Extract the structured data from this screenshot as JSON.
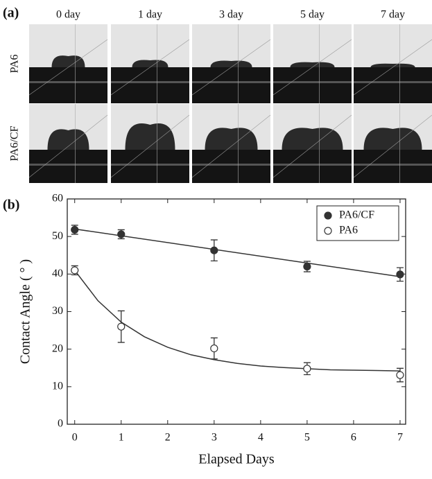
{
  "panel_a": {
    "label": "(a)",
    "columns": [
      "0 day",
      "1 day",
      "3 day",
      "5 day",
      "7 day"
    ],
    "rows": [
      "PA6",
      "PA6/CF"
    ]
  },
  "chart_data": {
    "type": "scatter",
    "label": "(b)",
    "x_label": "Elapsed Days",
    "y_label": "Contact Angle ( ° )",
    "xlim": [
      -0.16,
      7.12
    ],
    "ylim": [
      0,
      60
    ],
    "xticks": [
      0,
      1,
      2,
      3,
      4,
      5,
      6,
      7
    ],
    "yticks": [
      0,
      10,
      20,
      30,
      40,
      50,
      60
    ],
    "legend": "top-right",
    "series": [
      {
        "name": "PA6/CF",
        "color": "#333333",
        "filled": true,
        "x": [
          0,
          1,
          3,
          5,
          7
        ],
        "values": [
          51.8,
          50.6,
          46.3,
          42.0,
          39.9
        ],
        "errors": [
          1.2,
          1.2,
          2.8,
          1.4,
          1.8
        ],
        "fit": {
          "x": [
            0,
            7
          ],
          "values": [
            52,
            39.3
          ]
        }
      },
      {
        "name": "PA6",
        "color": "#333333",
        "filled": false,
        "x": [
          0,
          1,
          3,
          5,
          7
        ],
        "values": [
          41.0,
          26.0,
          20.2,
          14.8,
          13.1
        ],
        "errors": [
          1.2,
          4.2,
          2.8,
          1.6,
          1.8
        ],
        "fit": {
          "x": [
            0,
            0.5,
            1,
            1.5,
            2,
            2.5,
            3,
            3.5,
            4,
            4.5,
            5,
            5.5,
            6,
            6.5,
            7
          ],
          "values": [
            41,
            32.9,
            27.2,
            23.3,
            20.5,
            18.5,
            17.2,
            16.2,
            15.5,
            15.1,
            14.8,
            14.5,
            14.4,
            14.3,
            14.2
          ]
        }
      }
    ]
  }
}
